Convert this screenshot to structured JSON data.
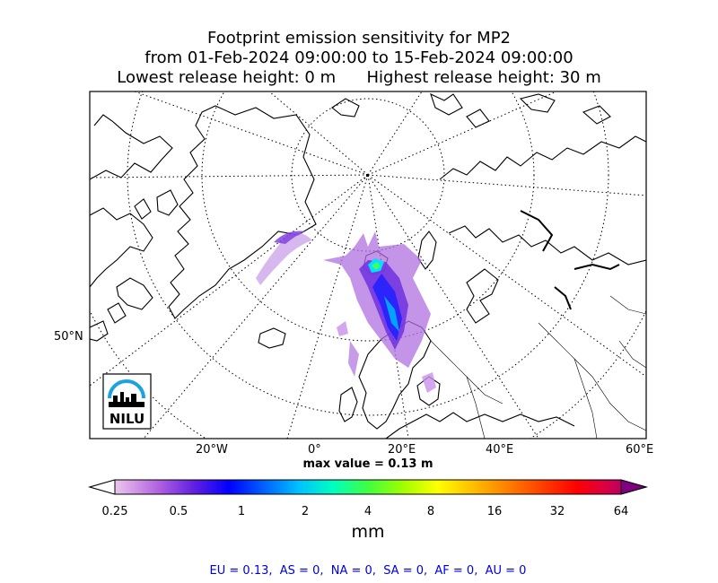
{
  "title": {
    "line1": "Footprint emission sensitivity for MP2",
    "line2": "from 01-Feb-2024 09:00:00 to 15-Feb-2024 09:00:00",
    "line3_left": "Lowest release height: 0 m",
    "line3_right": "Highest release height: 30 m"
  },
  "map": {
    "lat_label": "50°N",
    "lon_labels": [
      "20°W",
      "0°",
      "20°E",
      "40°E",
      "60°E"
    ],
    "logo_text": "NILU",
    "logo_color": "#1aa3e0"
  },
  "max_value": "max value = 0.13 m",
  "colorbar": {
    "label": "mm",
    "ticks": [
      "0.25",
      "0.5",
      "1",
      "2",
      "4",
      "8",
      "16",
      "32",
      "64"
    ],
    "colors": [
      "#ffffff",
      "#e0b0e8",
      "#b060e0",
      "#6020e0",
      "#0000ff",
      "#0060ff",
      "#00c0ff",
      "#00ffc0",
      "#40ff40",
      "#a0ff00",
      "#ffff00",
      "#ffc000",
      "#ff8000",
      "#ff4000",
      "#ff0000",
      "#d00050",
      "#800080"
    ]
  },
  "footer": "EU = 0.13,  AS = 0,  NA = 0,  SA = 0,  AF = 0,  AU = 0"
}
